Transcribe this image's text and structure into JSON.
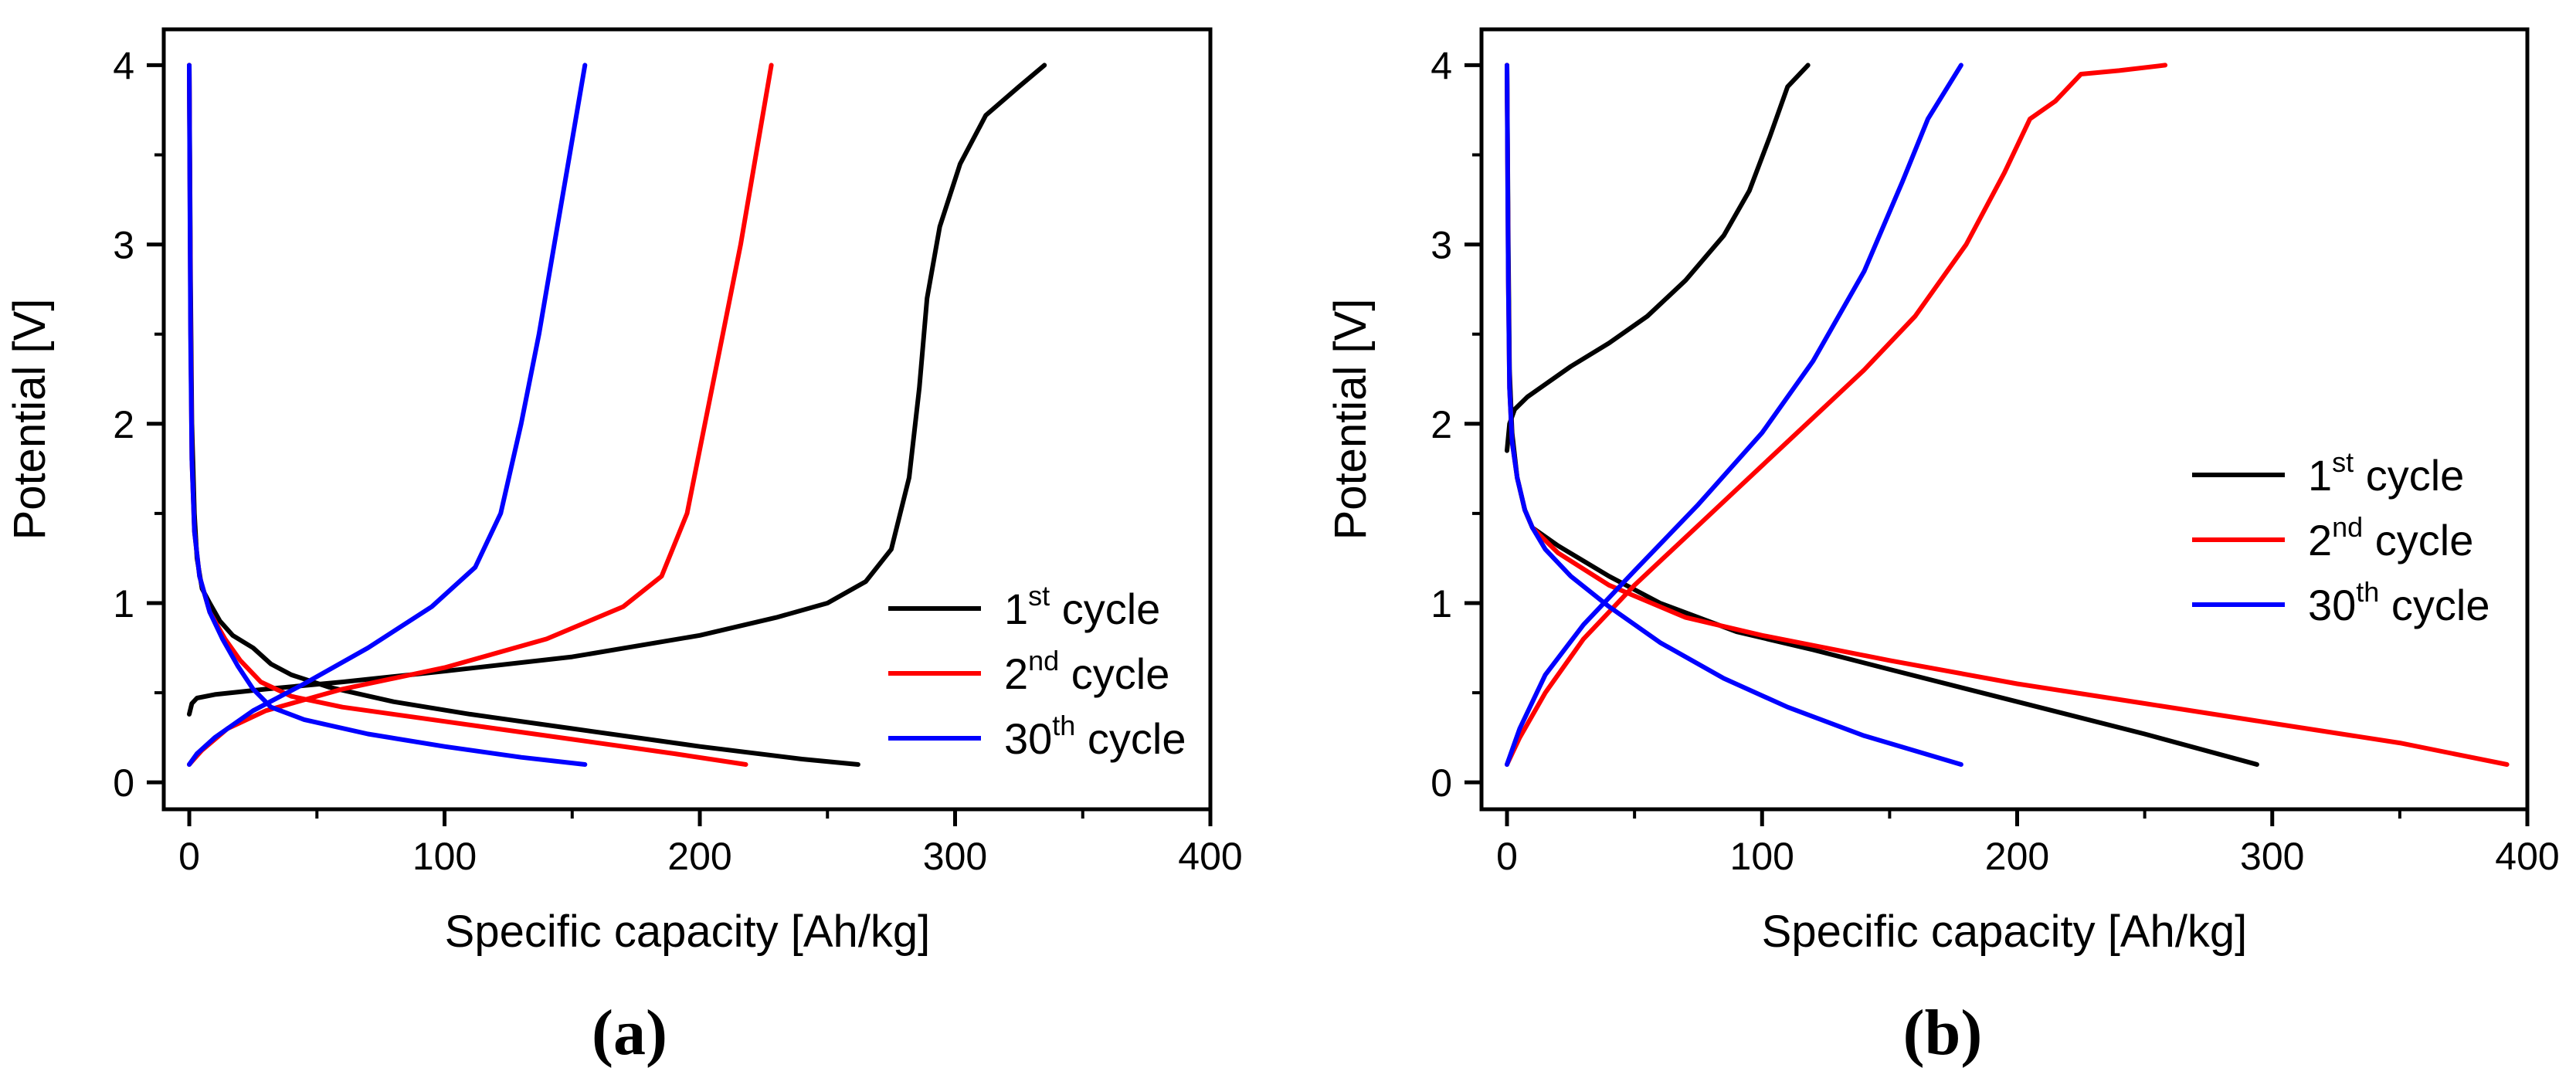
{
  "chart_data": [
    {
      "type": "line",
      "panel_label": "(a)",
      "xlabel": "Specific capacity [Ah/kg]",
      "ylabel": "Potential [V]",
      "xlim": [
        -10,
        400
      ],
      "ylim": [
        -0.15,
        4.2
      ],
      "xticks": [
        0,
        100,
        200,
        300,
        400
      ],
      "yticks": [
        0,
        1,
        2,
        3,
        4
      ],
      "legend_position": "right",
      "series": [
        {
          "name": "1st cycle",
          "label_base": "1",
          "label_sup": "st",
          "label_rest": " cycle",
          "color": "#000000",
          "discharge": [
            [
              0,
              4.0
            ],
            [
              0.5,
              2.8
            ],
            [
              1,
              2.0
            ],
            [
              2,
              1.5
            ],
            [
              3,
              1.25
            ],
            [
              5,
              1.08
            ],
            [
              8,
              1.0
            ],
            [
              12,
              0.9
            ],
            [
              17,
              0.82
            ],
            [
              25,
              0.75
            ],
            [
              32,
              0.66
            ],
            [
              40,
              0.6
            ],
            [
              55,
              0.53
            ],
            [
              80,
              0.45
            ],
            [
              110,
              0.38
            ],
            [
              150,
              0.3
            ],
            [
              200,
              0.2
            ],
            [
              240,
              0.13
            ],
            [
              262,
              0.1
            ]
          ],
          "charge": [
            [
              0,
              0.38
            ],
            [
              1,
              0.44
            ],
            [
              3,
              0.47
            ],
            [
              10,
              0.49
            ],
            [
              30,
              0.52
            ],
            [
              60,
              0.56
            ],
            [
              100,
              0.62
            ],
            [
              150,
              0.7
            ],
            [
              200,
              0.82
            ],
            [
              230,
              0.92
            ],
            [
              250,
              1.0
            ],
            [
              265,
              1.12
            ],
            [
              275,
              1.3
            ],
            [
              282,
              1.7
            ],
            [
              286,
              2.2
            ],
            [
              289,
              2.7
            ],
            [
              294,
              3.1
            ],
            [
              302,
              3.45
            ],
            [
              312,
              3.72
            ],
            [
              325,
              3.88
            ],
            [
              335,
              4.0
            ]
          ]
        },
        {
          "name": "2nd cycle",
          "label_base": "2",
          "label_sup": "nd",
          "label_rest": " cycle",
          "color": "#ff0000",
          "discharge": [
            [
              0,
              4.0
            ],
            [
              0.5,
              2.6
            ],
            [
              1,
              1.8
            ],
            [
              2,
              1.4
            ],
            [
              4,
              1.15
            ],
            [
              8,
              0.95
            ],
            [
              14,
              0.8
            ],
            [
              20,
              0.68
            ],
            [
              28,
              0.56
            ],
            [
              40,
              0.48
            ],
            [
              60,
              0.42
            ],
            [
              100,
              0.34
            ],
            [
              150,
              0.24
            ],
            [
              190,
              0.16
            ],
            [
              218,
              0.1
            ]
          ],
          "charge": [
            [
              0,
              0.1
            ],
            [
              5,
              0.18
            ],
            [
              15,
              0.3
            ],
            [
              30,
              0.4
            ],
            [
              60,
              0.52
            ],
            [
              100,
              0.64
            ],
            [
              140,
              0.8
            ],
            [
              170,
              0.98
            ],
            [
              185,
              1.15
            ],
            [
              195,
              1.5
            ],
            [
              202,
              2.0
            ],
            [
              209,
              2.5
            ],
            [
              216,
              3.0
            ],
            [
              222,
              3.5
            ],
            [
              228,
              4.0
            ]
          ]
        },
        {
          "name": "30th cycle",
          "label_base": "30",
          "label_sup": "th",
          "label_rest": " cycle",
          "color": "#0000ff",
          "discharge": [
            [
              0,
              4.0
            ],
            [
              0.5,
              2.5
            ],
            [
              1,
              1.8
            ],
            [
              2,
              1.4
            ],
            [
              4,
              1.15
            ],
            [
              8,
              0.95
            ],
            [
              13,
              0.8
            ],
            [
              19,
              0.65
            ],
            [
              25,
              0.52
            ],
            [
              32,
              0.42
            ],
            [
              45,
              0.35
            ],
            [
              70,
              0.27
            ],
            [
              100,
              0.2
            ],
            [
              130,
              0.14
            ],
            [
              155,
              0.1
            ]
          ],
          "charge": [
            [
              0,
              0.1
            ],
            [
              3,
              0.16
            ],
            [
              10,
              0.25
            ],
            [
              25,
              0.4
            ],
            [
              45,
              0.55
            ],
            [
              70,
              0.75
            ],
            [
              95,
              0.98
            ],
            [
              112,
              1.2
            ],
            [
              122,
              1.5
            ],
            [
              130,
              2.0
            ],
            [
              137,
              2.5
            ],
            [
              143,
              3.0
            ],
            [
              149,
              3.5
            ],
            [
              155,
              4.0
            ]
          ]
        }
      ]
    },
    {
      "type": "line",
      "panel_label": "(b)",
      "xlabel": "Specific capacity [Ah/kg]",
      "ylabel": "Potential [V]",
      "xlim": [
        -10,
        400
      ],
      "ylim": [
        -0.15,
        4.2
      ],
      "xticks": [
        0,
        100,
        200,
        300,
        400
      ],
      "yticks": [
        0,
        1,
        2,
        3,
        4
      ],
      "legend_position": "right",
      "series": [
        {
          "name": "1st cycle",
          "label_base": "1",
          "label_sup": "st",
          "label_rest": " cycle",
          "color": "#000000",
          "discharge": [
            [
              0,
              4.0
            ],
            [
              0.5,
              3.0
            ],
            [
              1,
              2.3
            ],
            [
              2,
              1.95
            ],
            [
              4,
              1.7
            ],
            [
              7,
              1.52
            ],
            [
              10,
              1.42
            ],
            [
              20,
              1.32
            ],
            [
              40,
              1.15
            ],
            [
              60,
              1.0
            ],
            [
              90,
              0.84
            ],
            [
              120,
              0.74
            ],
            [
              150,
              0.63
            ],
            [
              200,
              0.45
            ],
            [
              250,
              0.27
            ],
            [
              294,
              0.1
            ]
          ],
          "charge": [
            [
              0,
              1.85
            ],
            [
              1,
              2.0
            ],
            [
              3,
              2.08
            ],
            [
              8,
              2.15
            ],
            [
              15,
              2.22
            ],
            [
              25,
              2.32
            ],
            [
              40,
              2.45
            ],
            [
              55,
              2.6
            ],
            [
              70,
              2.8
            ],
            [
              85,
              3.05
            ],
            [
              95,
              3.3
            ],
            [
              103,
              3.6
            ],
            [
              110,
              3.88
            ],
            [
              118,
              4.0
            ]
          ]
        },
        {
          "name": "2nd cycle",
          "label_base": "2",
          "label_sup": "nd",
          "label_rest": " cycle",
          "color": "#ff0000",
          "discharge": [
            [
              0,
              4.0
            ],
            [
              0.5,
              2.8
            ],
            [
              1,
              2.2
            ],
            [
              2,
              1.9
            ],
            [
              4,
              1.7
            ],
            [
              7,
              1.52
            ],
            [
              10,
              1.42
            ],
            [
              20,
              1.28
            ],
            [
              40,
              1.1
            ],
            [
              70,
              0.92
            ],
            [
              100,
              0.82
            ],
            [
              150,
              0.68
            ],
            [
              200,
              0.55
            ],
            [
              250,
              0.44
            ],
            [
              300,
              0.33
            ],
            [
              350,
              0.22
            ],
            [
              392,
              0.1
            ]
          ],
          "charge": [
            [
              0,
              0.1
            ],
            [
              5,
              0.25
            ],
            [
              15,
              0.5
            ],
            [
              30,
              0.8
            ],
            [
              50,
              1.1
            ],
            [
              80,
              1.5
            ],
            [
              110,
              1.9
            ],
            [
              140,
              2.3
            ],
            [
              160,
              2.6
            ],
            [
              180,
              3.0
            ],
            [
              195,
              3.4
            ],
            [
              205,
              3.7
            ],
            [
              215,
              3.8
            ],
            [
              225,
              3.95
            ],
            [
              240,
              3.97
            ],
            [
              258,
              4.0
            ]
          ]
        },
        {
          "name": "30th cycle",
          "label_base": "30",
          "label_sup": "th",
          "label_rest": " cycle",
          "color": "#0000ff",
          "discharge": [
            [
              0,
              4.0
            ],
            [
              0.5,
              2.8
            ],
            [
              1,
              2.2
            ],
            [
              2,
              1.9
            ],
            [
              4,
              1.7
            ],
            [
              7,
              1.52
            ],
            [
              10,
              1.42
            ],
            [
              15,
              1.3
            ],
            [
              25,
              1.15
            ],
            [
              40,
              0.98
            ],
            [
              60,
              0.78
            ],
            [
              85,
              0.58
            ],
            [
              110,
              0.42
            ],
            [
              140,
              0.26
            ],
            [
              178,
              0.1
            ]
          ],
          "charge": [
            [
              0,
              0.1
            ],
            [
              5,
              0.3
            ],
            [
              15,
              0.6
            ],
            [
              30,
              0.88
            ],
            [
              50,
              1.18
            ],
            [
              75,
              1.55
            ],
            [
              100,
              1.95
            ],
            [
              120,
              2.35
            ],
            [
              140,
              2.85
            ],
            [
              155,
              3.35
            ],
            [
              165,
              3.7
            ],
            [
              178,
              4.0
            ]
          ]
        }
      ]
    }
  ]
}
